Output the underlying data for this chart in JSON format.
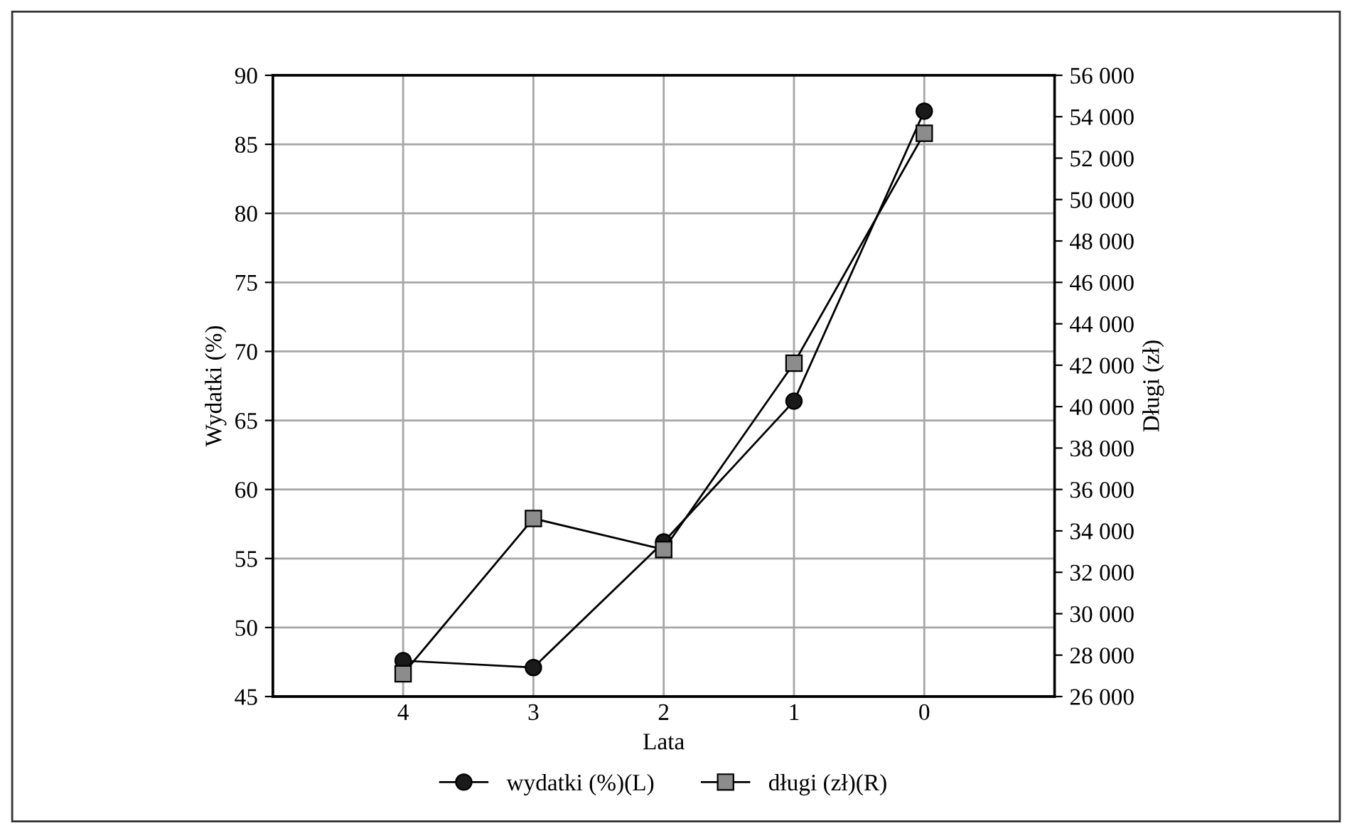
{
  "chart_data": {
    "type": "line",
    "xlabel": "Lata",
    "ylabel": "Wydatki (%)",
    "y2label": "Długi (zł)",
    "x": [
      4,
      3,
      2,
      1,
      0
    ],
    "xlim": [
      5,
      -1
    ],
    "xticks": [
      4,
      3,
      2,
      1,
      0
    ],
    "ylim": [
      45,
      90
    ],
    "yticks": [
      45,
      50,
      55,
      60,
      65,
      70,
      75,
      80,
      85,
      90
    ],
    "y2lim": [
      26000,
      56000
    ],
    "y2ticks": [
      {
        "value": 26000,
        "label": "26 000"
      },
      {
        "value": 28000,
        "label": "28 000"
      },
      {
        "value": 30000,
        "label": "30 000"
      },
      {
        "value": 32000,
        "label": "32 000"
      },
      {
        "value": 34000,
        "label": "34 000"
      },
      {
        "value": 36000,
        "label": "36 000"
      },
      {
        "value": 38000,
        "label": "38 000"
      },
      {
        "value": 40000,
        "label": "40 000"
      },
      {
        "value": 42000,
        "label": "42 000"
      },
      {
        "value": 44000,
        "label": "44 000"
      },
      {
        "value": 46000,
        "label": "46 000"
      },
      {
        "value": 48000,
        "label": "48 000"
      },
      {
        "value": 50000,
        "label": "50 000"
      },
      {
        "value": 52000,
        "label": "52 000"
      },
      {
        "value": 54000,
        "label": "54 000"
      },
      {
        "value": 56000,
        "label": "56 000"
      }
    ],
    "series": [
      {
        "name": "wydatki (%)(L)",
        "color": "#1a1a1a",
        "marker": "circle",
        "values": [
          47.6,
          47.1,
          56.2,
          66.4,
          87.4
        ]
      },
      {
        "name": "długi (zł)(R)",
        "color": "#8c8c8c",
        "marker": "square",
        "axis": "y2",
        "values": [
          27100,
          34600,
          33100,
          42100,
          53200
        ]
      }
    ],
    "grid": true,
    "legend": "bottom",
    "line_style": "solid"
  }
}
